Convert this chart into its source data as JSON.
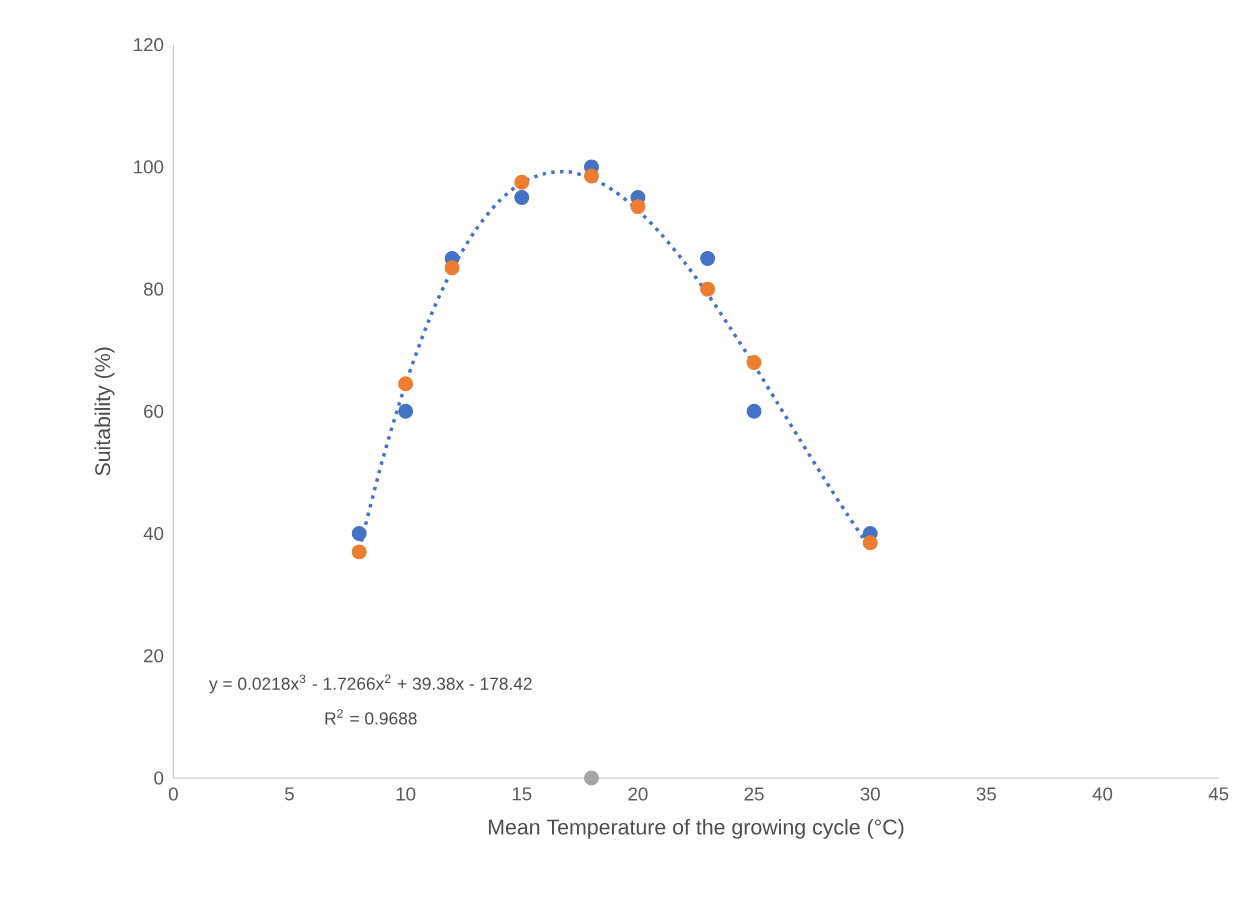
{
  "chart_data": {
    "type": "scatter",
    "xlabel": "Mean Temperature of the growing cycle (°C)",
    "ylabel": "Suitability (%)",
    "xlim": [
      0,
      45
    ],
    "xticks": [
      0,
      5,
      10,
      15,
      20,
      25,
      30,
      35,
      40,
      45
    ],
    "ylim": [
      0,
      120
    ],
    "yticks": [
      0,
      20,
      40,
      60,
      80,
      100,
      120
    ],
    "grid": false,
    "series": [
      {
        "marker": "circle",
        "color": "#4472c4",
        "x": [
          8,
          10,
          12,
          15,
          18,
          20,
          23,
          25,
          30
        ],
        "values": [
          40,
          60,
          85,
          95,
          100,
          95,
          85,
          60,
          40
        ]
      },
      {
        "marker": "circle",
        "color": "#ed7d31",
        "x": [
          8,
          10,
          12,
          15,
          18,
          20,
          23,
          25,
          30
        ],
        "values": [
          37,
          64.5,
          83.5,
          97.5,
          98.5,
          93.5,
          80,
          68,
          38.5
        ]
      },
      {
        "type": "line",
        "line_style": "dotted",
        "marker": "none",
        "color": "#4472c4",
        "x": [
          8,
          9,
          10,
          11,
          12,
          13,
          14,
          15,
          16,
          17,
          18,
          19,
          20,
          21,
          22,
          23,
          24,
          25,
          26,
          27,
          28,
          29,
          30
        ],
        "values": [
          37.3,
          52.0,
          64.5,
          74.9,
          83.2,
          89.6,
          94.3,
          97.4,
          98.9,
          99.2,
          98.1,
          96.0,
          92.9,
          89.0,
          84.4,
          79.2,
          73.5,
          67.6,
          61.4,
          55.2,
          49.1,
          43.2,
          37.6
        ]
      },
      {
        "marker": "circle",
        "color": "#a5a5a5",
        "x": [
          18
        ],
        "values": [
          0
        ]
      }
    ],
    "annotations": [
      "y = 0.0218x$^{3}$ - 1.7266x$^{2}$ + 39.38x - 178.42",
      "R$^{2}$ = 0.9688"
    ]
  }
}
